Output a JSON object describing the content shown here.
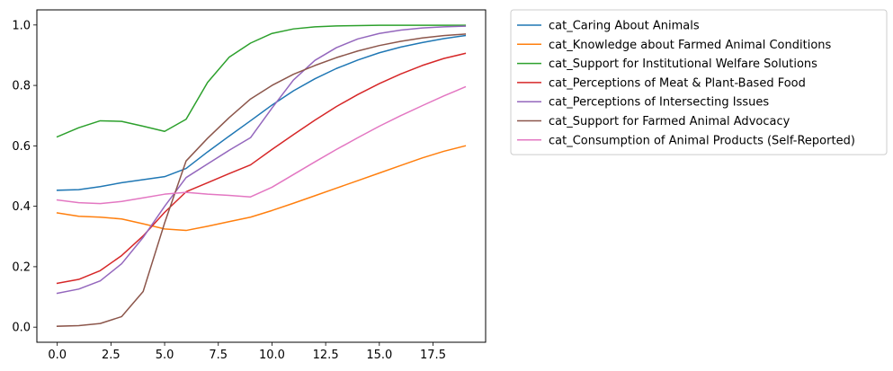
{
  "chart_data": {
    "type": "line",
    "title": "",
    "xlabel": "",
    "ylabel": "",
    "xlim": [
      -0.95,
      19.95
    ],
    "ylim": [
      -0.05,
      1.05
    ],
    "xticks": [
      0.0,
      2.5,
      5.0,
      7.5,
      10.0,
      12.5,
      15.0,
      17.5
    ],
    "xtick_labels": [
      "0.0",
      "2.5",
      "5.0",
      "7.5",
      "10.0",
      "12.5",
      "15.0",
      "17.5"
    ],
    "yticks": [
      0.0,
      0.2,
      0.4,
      0.6,
      0.8,
      1.0
    ],
    "ytick_labels": [
      "0.0",
      "0.2",
      "0.4",
      "0.6",
      "0.8",
      "1.0"
    ],
    "grid": false,
    "legend_position": "outside-right-top",
    "x": [
      0,
      1,
      2,
      3,
      4,
      5,
      6,
      7,
      8,
      9,
      10,
      11,
      12,
      13,
      14,
      15,
      16,
      17,
      18,
      19
    ],
    "series": [
      {
        "name": "cat_Caring About Animals",
        "color": "#1f77b4",
        "values": [
          0.453,
          0.455,
          0.465,
          0.478,
          0.488,
          0.498,
          0.525,
          0.58,
          0.632,
          0.683,
          0.735,
          0.782,
          0.822,
          0.856,
          0.884,
          0.908,
          0.927,
          0.942,
          0.955,
          0.965
        ]
      },
      {
        "name": "cat_Knowledge about Farmed Animal Conditions",
        "color": "#ff7f0e",
        "values": [
          0.378,
          0.367,
          0.364,
          0.358,
          0.342,
          0.325,
          0.32,
          0.334,
          0.349,
          0.364,
          0.386,
          0.41,
          0.435,
          0.46,
          0.485,
          0.51,
          0.535,
          0.56,
          0.582,
          0.6
        ]
      },
      {
        "name": "cat_Support for Institutional Welfare Solutions",
        "color": "#2ca02c",
        "values": [
          0.63,
          0.66,
          0.683,
          0.681,
          0.665,
          0.648,
          0.688,
          0.81,
          0.893,
          0.94,
          0.972,
          0.987,
          0.994,
          0.997,
          0.998,
          0.999,
          0.999,
          0.999,
          0.999,
          0.999
        ]
      },
      {
        "name": "cat_Perceptions of Meat & Plant-Based Food",
        "color": "#d62728",
        "values": [
          0.145,
          0.158,
          0.187,
          0.237,
          0.302,
          0.38,
          0.448,
          0.478,
          0.508,
          0.537,
          0.588,
          0.637,
          0.685,
          0.73,
          0.77,
          0.806,
          0.838,
          0.866,
          0.889,
          0.906
        ]
      },
      {
        "name": "cat_Perceptions of Intersecting Issues",
        "color": "#9467bd",
        "values": [
          0.112,
          0.126,
          0.153,
          0.21,
          0.297,
          0.4,
          0.495,
          0.54,
          0.585,
          0.627,
          0.725,
          0.818,
          0.883,
          0.925,
          0.954,
          0.972,
          0.983,
          0.99,
          0.994,
          0.996
        ]
      },
      {
        "name": "cat_Support for Farmed Animal Advocacy",
        "color": "#8c564b",
        "values": [
          0.003,
          0.005,
          0.012,
          0.035,
          0.118,
          0.345,
          0.55,
          0.625,
          0.693,
          0.755,
          0.8,
          0.837,
          0.866,
          0.892,
          0.914,
          0.932,
          0.946,
          0.957,
          0.965,
          0.97
        ]
      },
      {
        "name": "cat_Consumption of Animal Products (Self-Reported)",
        "color": "#e377c2",
        "values": [
          0.421,
          0.412,
          0.409,
          0.416,
          0.428,
          0.44,
          0.446,
          0.44,
          0.436,
          0.431,
          0.463,
          0.505,
          0.547,
          0.588,
          0.627,
          0.665,
          0.7,
          0.733,
          0.765,
          0.795
        ]
      }
    ]
  }
}
